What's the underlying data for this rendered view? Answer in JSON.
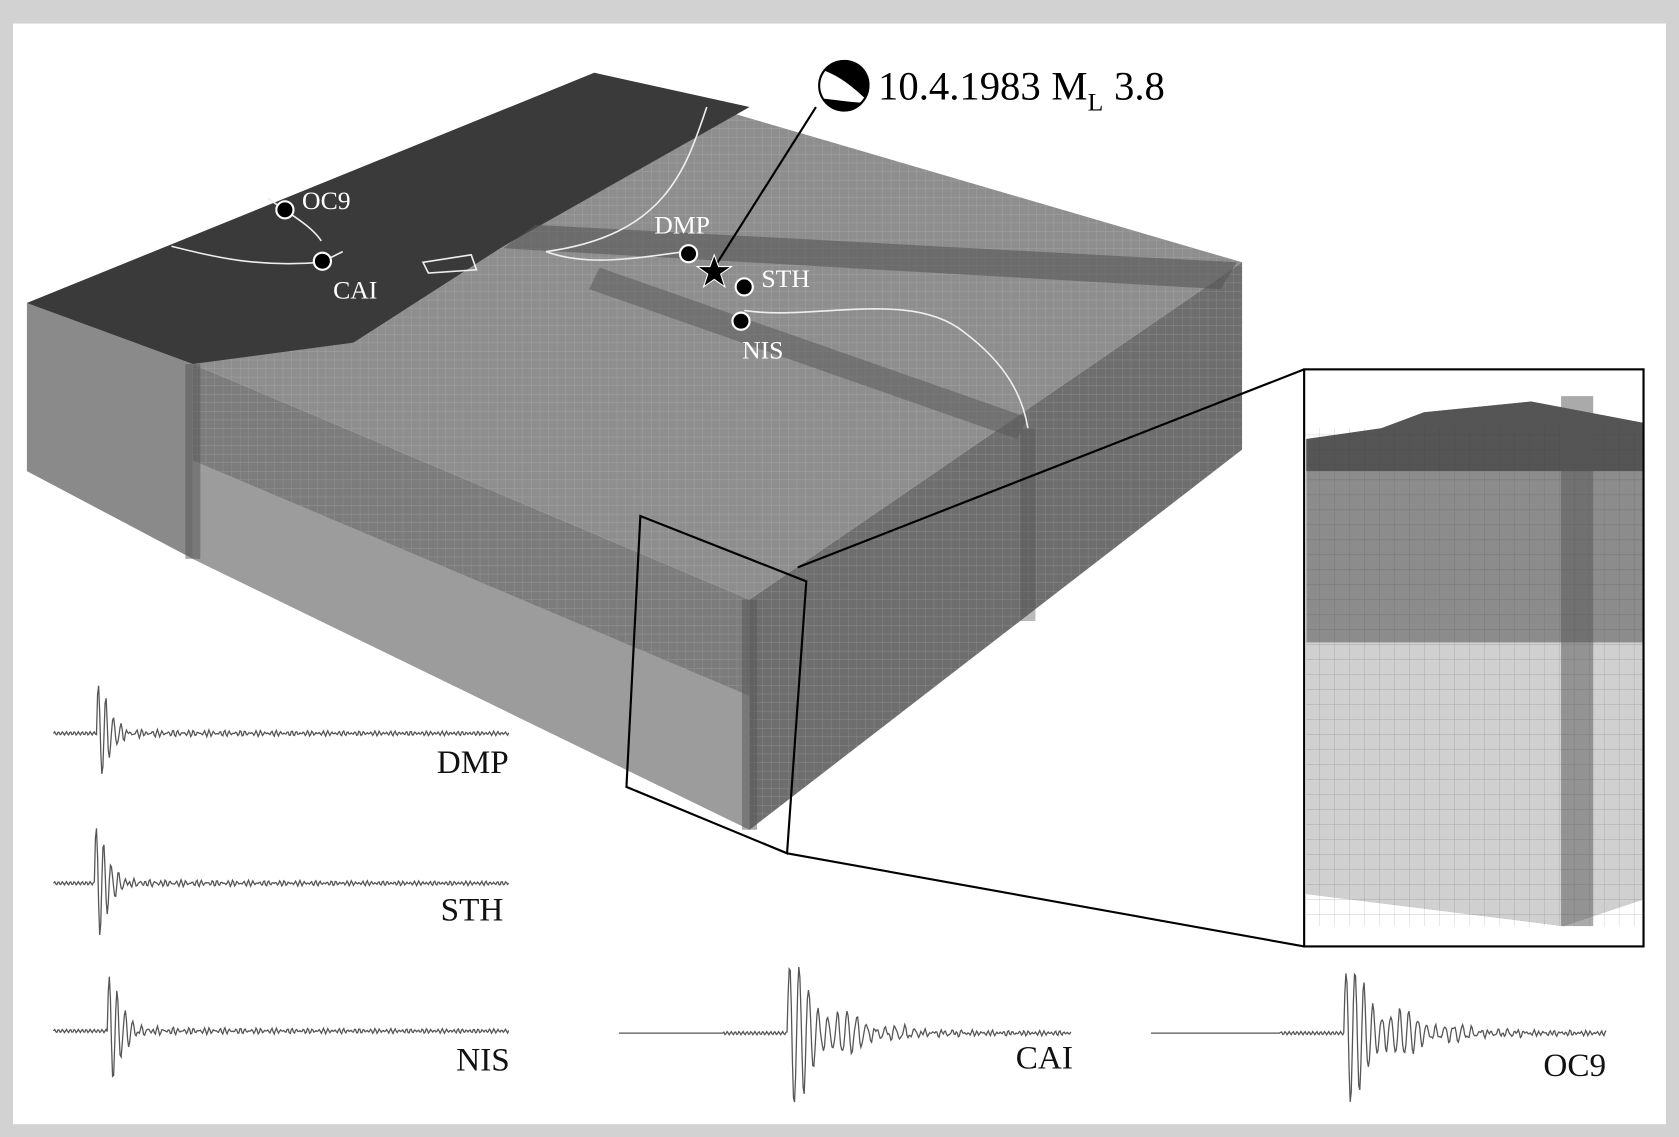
{
  "event": {
    "date": "10.4.1983",
    "magnitude_symbol": "M",
    "magnitude_subscript": "L",
    "magnitude": "3.8"
  },
  "stations": [
    {
      "label": "OC9"
    },
    {
      "label": "CAI"
    },
    {
      "label": "DMP"
    },
    {
      "label": "STH"
    },
    {
      "label": "NIS"
    }
  ],
  "waveforms": [
    {
      "label": "DMP"
    },
    {
      "label": "STH"
    },
    {
      "label": "NIS"
    },
    {
      "label": "CAI"
    },
    {
      "label": "OC9"
    }
  ]
}
